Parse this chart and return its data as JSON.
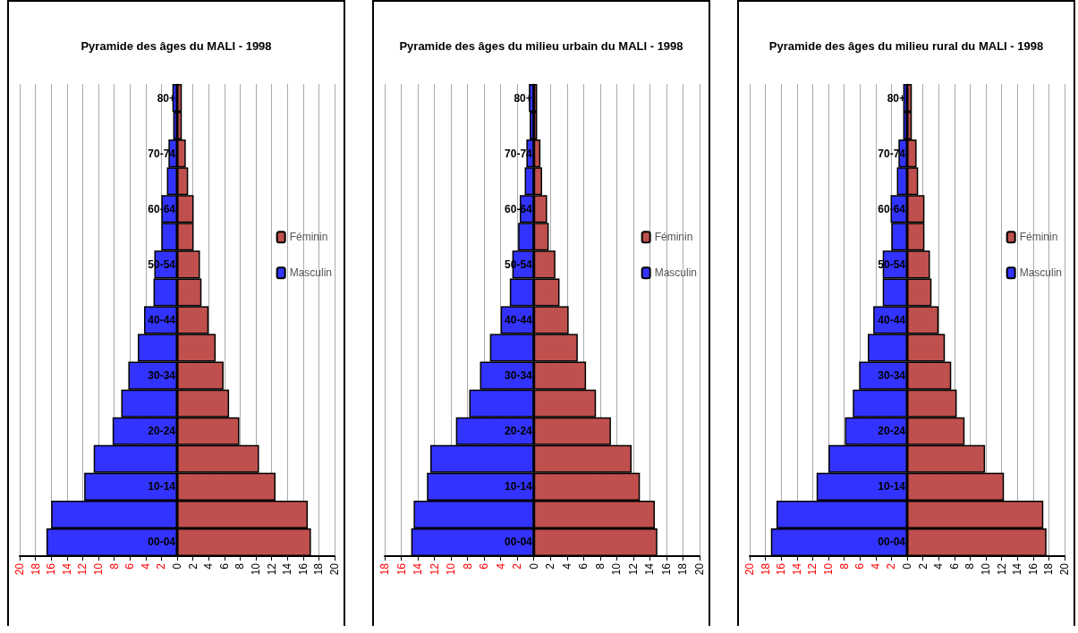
{
  "chart_data": [
    {
      "type": "bar",
      "orientation": "horizontal",
      "stacked": true,
      "title": "Pyramide des âges du MALI - 1998",
      "legend": "right",
      "grid": "x",
      "categories": [
        "80+",
        null,
        "70-74",
        null,
        "60-64",
        null,
        "50-54",
        null,
        "40-44",
        null,
        "30-34",
        null,
        "20-24",
        null,
        "10-14",
        null,
        "00-04"
      ],
      "xlim": [
        -20,
        20
      ],
      "xticks": [
        {
          "value": -20,
          "label": "20"
        },
        {
          "value": -18,
          "label": "18"
        },
        {
          "value": -16,
          "label": "16"
        },
        {
          "value": -14,
          "label": "14"
        },
        {
          "value": -12,
          "label": "12"
        },
        {
          "value": -10,
          "label": "10"
        },
        {
          "value": -8,
          "label": "8"
        },
        {
          "value": -6,
          "label": "6"
        },
        {
          "value": -4,
          "label": "4"
        },
        {
          "value": -2,
          "label": "2"
        },
        0,
        2,
        4,
        6,
        8,
        10,
        12,
        14,
        16,
        18,
        20
      ],
      "series": [
        {
          "name": "Féminin",
          "color": "#c0504d",
          "values": [
            0.6,
            0.6,
            1.1,
            1.4,
            2.1,
            2.1,
            2.9,
            3.1,
            4.0,
            4.9,
            5.9,
            6.6,
            7.9,
            10.4,
            12.5,
            16.6,
            17.0
          ]
        },
        {
          "name": "Masculin",
          "color": "#3333ff",
          "values": [
            -0.6,
            -0.5,
            -1.1,
            -1.3,
            -2.0,
            -2.0,
            -2.9,
            -3.0,
            -4.2,
            -5.0,
            -6.2,
            -7.1,
            -8.2,
            -10.6,
            -11.8,
            -16.0,
            -16.6
          ]
        }
      ]
    },
    {
      "type": "bar",
      "orientation": "horizontal",
      "stacked": true,
      "title": "Pyramide des âges du milieu urbain du MALI - 1998",
      "legend": "right",
      "grid": "x",
      "categories": [
        "80+",
        null,
        "70-74",
        null,
        "60-64",
        null,
        "50-54",
        null,
        "40-44",
        null,
        "30-34",
        null,
        "20-24",
        null,
        "10-14",
        null,
        "00-04"
      ],
      "xlim": [
        -18,
        20
      ],
      "xticks": [
        {
          "value": -18,
          "label": "18"
        },
        {
          "value": -16,
          "label": "16"
        },
        {
          "value": -14,
          "label": "14"
        },
        {
          "value": -12,
          "label": "12"
        },
        {
          "value": -10,
          "label": "10"
        },
        {
          "value": -8,
          "label": "8"
        },
        {
          "value": -6,
          "label": "6"
        },
        {
          "value": -4,
          "label": "4"
        },
        {
          "value": -2,
          "label": "2"
        },
        0,
        2,
        4,
        6,
        8,
        10,
        12,
        14,
        16,
        18,
        20
      ],
      "series": [
        {
          "name": "Féminin",
          "color": "#c0504d",
          "values": [
            0.4,
            0.4,
            0.8,
            1.0,
            1.6,
            1.8,
            2.6,
            3.1,
            4.2,
            5.3,
            6.3,
            7.5,
            9.3,
            11.8,
            12.8,
            14.6,
            14.9
          ]
        },
        {
          "name": "Masculin",
          "color": "#3333ff",
          "values": [
            -0.6,
            -0.5,
            -0.9,
            -1.1,
            -1.7,
            -1.9,
            -2.6,
            -2.9,
            -4.0,
            -5.3,
            -6.5,
            -7.8,
            -9.4,
            -12.5,
            -12.9,
            -14.5,
            -14.8
          ]
        }
      ]
    },
    {
      "type": "bar",
      "orientation": "horizontal",
      "stacked": true,
      "title": "Pyramide des âges du milieu rural du MALI - 1998",
      "legend": "right",
      "grid": "x",
      "categories": [
        "80+",
        null,
        "70-74",
        null,
        "60-64",
        null,
        "50-54",
        null,
        "40-44",
        null,
        "30-34",
        null,
        "20-24",
        null,
        "10-14",
        null,
        "00-04"
      ],
      "xlim": [
        -20,
        20
      ],
      "xticks": [
        {
          "value": -20,
          "label": "20"
        },
        {
          "value": -18,
          "label": "18"
        },
        {
          "value": -16,
          "label": "16"
        },
        {
          "value": -14,
          "label": "14"
        },
        {
          "value": -12,
          "label": "12"
        },
        {
          "value": -10,
          "label": "10"
        },
        {
          "value": -8,
          "label": "8"
        },
        {
          "value": -6,
          "label": "6"
        },
        {
          "value": -4,
          "label": "4"
        },
        {
          "value": -2,
          "label": "2"
        },
        0,
        2,
        4,
        6,
        8,
        10,
        12,
        14,
        16,
        18,
        20
      ],
      "series": [
        {
          "name": "Féminin",
          "color": "#c0504d",
          "values": [
            0.6,
            0.6,
            1.2,
            1.4,
            2.2,
            2.2,
            2.9,
            3.1,
            4.0,
            4.8,
            5.6,
            6.3,
            7.3,
            9.9,
            12.3,
            17.3,
            17.7
          ]
        },
        {
          "name": "Masculin",
          "color": "#3333ff",
          "values": [
            -0.5,
            -0.5,
            -1.1,
            -1.3,
            -2.1,
            -2.0,
            -3.1,
            -3.1,
            -4.3,
            -5.0,
            -6.1,
            -6.9,
            -7.9,
            -10.0,
            -11.5,
            -16.6,
            -17.3
          ]
        }
      ]
    }
  ]
}
